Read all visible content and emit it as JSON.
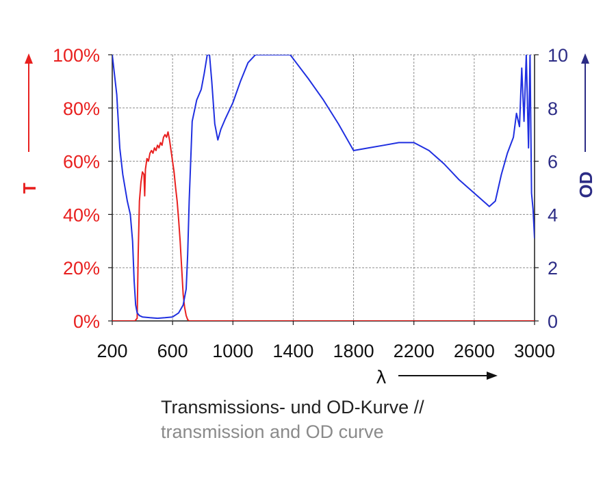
{
  "chart_data": {
    "type": "line",
    "xlabel": "λ",
    "ylabel_left": "T",
    "ylabel_right": "OD",
    "xlim": [
      200,
      3000
    ],
    "ylim_left": [
      0,
      100
    ],
    "ylim_right": [
      0,
      10
    ],
    "x_ticks": [
      "200",
      "600",
      "1000",
      "1400",
      "1800",
      "2200",
      "2600",
      "3000"
    ],
    "y_left_ticks": [
      "0%",
      "20%",
      "40%",
      "60%",
      "80%",
      "100%"
    ],
    "y_right_ticks": [
      "0",
      "2",
      "4",
      "6",
      "8",
      "10"
    ],
    "grid": true,
    "series": [
      {
        "axis": "left",
        "color": "#e8201f",
        "x": [
          200,
          350,
          365,
          372,
          380,
          390,
          400,
          410,
          415,
          420,
          430,
          440,
          450,
          460,
          470,
          480,
          490,
          500,
          510,
          520,
          530,
          540,
          550,
          560,
          570,
          580,
          590,
          600,
          610,
          620,
          630,
          640,
          650,
          660,
          670,
          680,
          690,
          700,
          710,
          1000,
          2000,
          3000
        ],
        "y": [
          0,
          0,
          1,
          25,
          45,
          52,
          56,
          55,
          47,
          57,
          61,
          60,
          63,
          64,
          63,
          65,
          64,
          66,
          65,
          67,
          66,
          69,
          70,
          69,
          71,
          68,
          64,
          60,
          56,
          50,
          45,
          38,
          30,
          20,
          10,
          5,
          2,
          0.5,
          0,
          0,
          0,
          0
        ]
      },
      {
        "axis": "right",
        "color": "#1f2fe0",
        "x": [
          200,
          230,
          250,
          270,
          300,
          320,
          335,
          345,
          355,
          365,
          380,
          400,
          450,
          500,
          550,
          600,
          640,
          670,
          690,
          700,
          710,
          720,
          730,
          760,
          790,
          810,
          830,
          845,
          860,
          870,
          880,
          900,
          920,
          950,
          1000,
          1050,
          1100,
          1150,
          1200,
          1300,
          1380,
          1420,
          1500,
          1600,
          1700,
          1800,
          1900,
          2000,
          2100,
          2200,
          2300,
          2400,
          2500,
          2600,
          2680,
          2700,
          2740,
          2780,
          2820,
          2860,
          2880,
          2900,
          2915,
          2930,
          2945,
          2960,
          2970,
          2980,
          2990,
          3000
        ],
        "y": [
          10,
          8.5,
          6.5,
          5.5,
          4.5,
          4,
          3,
          1.5,
          0.6,
          0.3,
          0.2,
          0.15,
          0.12,
          0.1,
          0.12,
          0.15,
          0.3,
          0.6,
          1.2,
          2.5,
          4.5,
          6,
          7.5,
          8.3,
          8.7,
          9.3,
          10,
          10,
          9,
          8.2,
          7.4,
          6.8,
          7.2,
          7.6,
          8.2,
          9,
          9.7,
          10,
          10,
          10,
          10,
          9.7,
          9.1,
          8.3,
          7.4,
          6.4,
          6.5,
          6.6,
          6.7,
          6.7,
          6.4,
          5.9,
          5.3,
          4.8,
          4.4,
          4.3,
          4.5,
          5.5,
          6.3,
          6.9,
          7.8,
          7.3,
          9.5,
          7.5,
          10,
          6.5,
          10,
          4.8,
          4.2,
          3.1
        ]
      }
    ]
  },
  "caption": {
    "line1": "Transmissions- und OD-Kurve //",
    "line2": "transmission and OD curve"
  },
  "colors": {
    "transmission": "#e8201f",
    "od": "#1f2fe0",
    "od_axis": "#2c2c85",
    "grid": "#8c8c8c",
    "axis": "#1a1a1a"
  }
}
